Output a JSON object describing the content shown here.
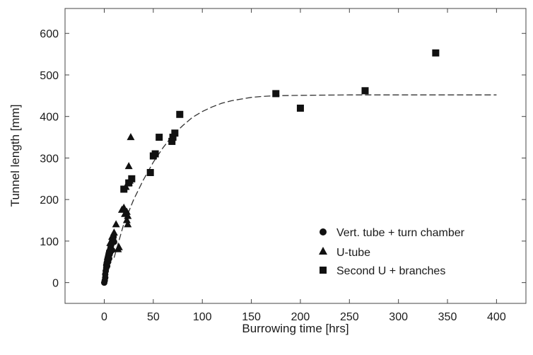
{
  "chart_data": {
    "type": "scatter",
    "title": "",
    "xlabel": "Burrowing time [hrs]",
    "ylabel": "Tunnel length [mm]",
    "xlim": [
      -40,
      430
    ],
    "ylim": [
      -50,
      660
    ],
    "xticks": [
      0,
      50,
      100,
      150,
      200,
      250,
      300,
      350,
      400
    ],
    "yticks": [
      0,
      100,
      200,
      300,
      400,
      500,
      600
    ],
    "grid": false,
    "legend_position": "bottom-right",
    "series": [
      {
        "name": "Vert. tube + turn chamber",
        "marker": "circle",
        "points": [
          [
            0,
            0
          ],
          [
            0.5,
            5
          ],
          [
            1,
            12
          ],
          [
            1,
            20
          ],
          [
            1.5,
            28
          ],
          [
            2,
            35
          ],
          [
            2,
            42
          ],
          [
            2.5,
            48
          ],
          [
            3,
            40
          ],
          [
            3,
            55
          ],
          [
            3.5,
            60
          ],
          [
            4,
            50
          ],
          [
            4,
            65
          ],
          [
            4.5,
            70
          ],
          [
            5,
            58
          ],
          [
            5,
            75
          ],
          [
            5.5,
            68
          ],
          [
            6,
            80
          ],
          [
            6,
            72
          ],
          [
            6.5,
            85
          ],
          [
            7,
            90
          ],
          [
            7.5,
            95
          ],
          [
            8,
            100
          ],
          [
            8,
            78
          ],
          [
            9,
            105
          ],
          [
            9.5,
            110
          ],
          [
            10,
            98
          ]
        ]
      },
      {
        "name": "U-tube",
        "marker": "triangle",
        "points": [
          [
            6,
            95
          ],
          [
            8,
            110
          ],
          [
            10,
            120
          ],
          [
            12,
            140
          ],
          [
            14,
            80
          ],
          [
            15,
            85
          ],
          [
            18,
            175
          ],
          [
            20,
            180
          ],
          [
            21,
            165
          ],
          [
            22,
            230
          ],
          [
            23,
            170
          ],
          [
            23,
            150
          ],
          [
            24,
            140
          ],
          [
            24,
            160
          ],
          [
            25,
            240
          ],
          [
            25,
            280
          ],
          [
            26,
            245
          ],
          [
            27,
            350
          ]
        ]
      },
      {
        "name": "Second U + branches",
        "marker": "square",
        "points": [
          [
            20,
            225
          ],
          [
            25,
            240
          ],
          [
            28,
            250
          ],
          [
            47,
            265
          ],
          [
            50,
            305
          ],
          [
            52,
            310
          ],
          [
            56,
            350
          ],
          [
            69,
            340
          ],
          [
            70,
            350
          ],
          [
            72,
            360
          ],
          [
            77,
            405
          ],
          [
            175,
            455
          ],
          [
            200,
            420
          ],
          [
            266,
            462
          ],
          [
            338,
            553
          ]
        ]
      }
    ],
    "fit_curve": {
      "style": "dashed",
      "points": [
        [
          10,
          60
        ],
        [
          20,
          142
        ],
        [
          30,
          200
        ],
        [
          40,
          248
        ],
        [
          50,
          290
        ],
        [
          60,
          325
        ],
        [
          70,
          355
        ],
        [
          80,
          378
        ],
        [
          90,
          398
        ],
        [
          100,
          412
        ],
        [
          110,
          423
        ],
        [
          120,
          432
        ],
        [
          130,
          438
        ],
        [
          140,
          442
        ],
        [
          150,
          446
        ],
        [
          160,
          448
        ],
        [
          175,
          450
        ],
        [
          200,
          451
        ],
        [
          250,
          452
        ],
        [
          300,
          452
        ],
        [
          350,
          452
        ],
        [
          400,
          452
        ]
      ]
    }
  }
}
